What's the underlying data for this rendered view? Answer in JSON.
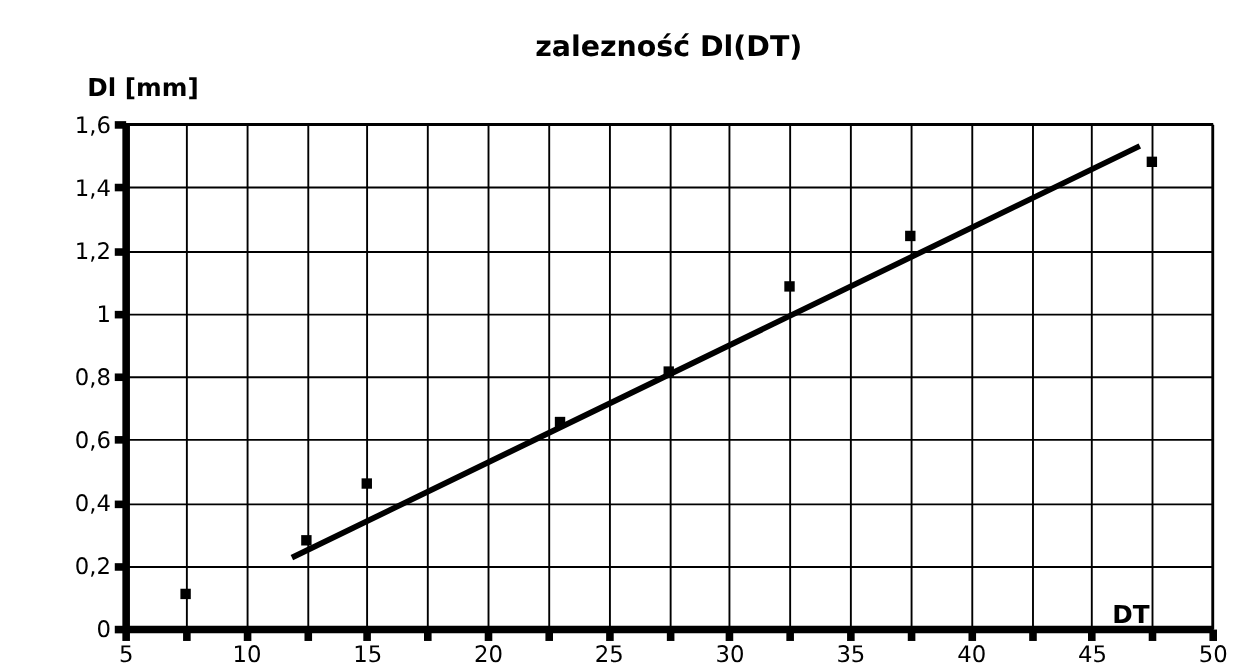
{
  "chart_data": {
    "type": "scatter",
    "title": "zalezność Dl(DT)",
    "xlabel": "DT",
    "ylabel": "Dl [mm]",
    "x": [
      7.5,
      12.5,
      15,
      23,
      27.5,
      32.5,
      37.5,
      47.5
    ],
    "series": [
      {
        "color": "#000000",
        "marker": "square",
        "values": [
          0.11,
          0.28,
          0.46,
          0.655,
          0.815,
          1.085,
          1.245,
          1.48
        ]
      },
      {
        "type": "line",
        "color": "#000000",
        "x": [
          11.9,
          47
        ],
        "values": [
          0.225,
          1.53
        ],
        "line_style": "solid"
      }
    ],
    "xlim": [
      5,
      50
    ],
    "ylim": [
      0,
      1.6
    ],
    "xticks": [
      5,
      {
        "value": 7.5,
        "label": null
      },
      10,
      {
        "value": 12.5,
        "label": null
      },
      15,
      {
        "value": 17.5,
        "label": null
      },
      20,
      {
        "value": 22.5,
        "label": null
      },
      25,
      {
        "value": 27.5,
        "label": null
      },
      30,
      {
        "value": 32.5,
        "label": null
      },
      35,
      {
        "value": 37.5,
        "label": null
      },
      40,
      {
        "value": 42.5,
        "label": null
      },
      45,
      {
        "value": 47.5,
        "label": null
      },
      50
    ],
    "yticks": [
      0,
      {
        "value": 0.2,
        "label": "0,2"
      },
      {
        "value": 0.4,
        "label": "0,4"
      },
      {
        "value": 0.6,
        "label": "0,6"
      },
      {
        "value": 0.8,
        "label": "0,8"
      },
      1,
      {
        "value": 1.2,
        "label": "1,2"
      },
      {
        "value": 1.4,
        "label": "1,4"
      },
      {
        "value": 1.6,
        "label": "1,6"
      }
    ],
    "grid": true
  }
}
